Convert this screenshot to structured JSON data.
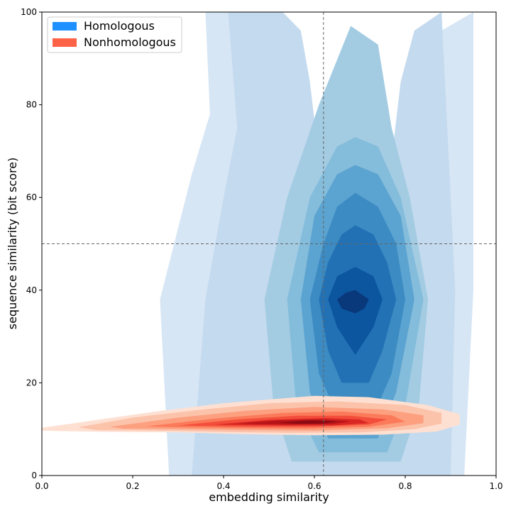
{
  "chart_data": {
    "type": "contour",
    "title": "",
    "xlabel": "embedding similarity",
    "ylabel": "sequence similarity (bit score)",
    "xlim": [
      0.0,
      1.0
    ],
    "ylim": [
      0,
      100
    ],
    "x_ticks": [
      {
        "value": 0.0,
        "label": "0.0"
      },
      {
        "value": 0.2,
        "label": "0.2"
      },
      {
        "value": 0.4,
        "label": "0.4"
      },
      {
        "value": 0.6,
        "label": "0.6"
      },
      {
        "value": 0.8,
        "label": "0.8"
      },
      {
        "value": 1.0,
        "label": "1.0"
      }
    ],
    "y_ticks": [
      {
        "value": 0,
        "label": "0"
      },
      {
        "value": 20,
        "label": "20"
      },
      {
        "value": 40,
        "label": "40"
      },
      {
        "value": 60,
        "label": "60"
      },
      {
        "value": 80,
        "label": "80"
      },
      {
        "value": 100,
        "label": "100"
      }
    ],
    "reference_lines": [
      {
        "orientation": "vertical",
        "value": 0.62
      },
      {
        "orientation": "horizontal",
        "value": 50
      }
    ],
    "grid": false,
    "legend": {
      "position": "top-left",
      "entries": [
        {
          "label": "Homologous",
          "color": "#1e90ff"
        },
        {
          "label": "Nonhomologous",
          "color": "#ff6347"
        }
      ]
    },
    "series": [
      {
        "name": "Homologous",
        "colormap": [
          "#d7e6f5",
          "#c4daee",
          "#a3cce3",
          "#84bcdb",
          "#5ba3d0",
          "#3c8bc3",
          "#2271b5",
          "#0c56a0",
          "#09387b"
        ],
        "center": [
          0.69,
          38
        ],
        "levels": [
          [
            [
              0.36,
              100
            ],
            [
              0.44,
              100
            ],
            [
              0.5,
              96
            ],
            [
              0.54,
              85
            ],
            [
              0.57,
              60
            ],
            [
              0.6,
              38
            ],
            [
              0.64,
              22
            ],
            [
              0.67,
              15
            ],
            [
              0.69,
              11
            ],
            [
              0.71,
              15
            ],
            [
              0.74,
              22
            ],
            [
              0.78,
              38
            ],
            [
              0.81,
              60
            ],
            [
              0.84,
              85
            ],
            [
              0.88,
              96
            ],
            [
              0.95,
              100
            ],
            [
              0.95,
              40
            ],
            [
              0.94,
              20
            ],
            [
              0.93,
              0
            ],
            [
              0.28,
              0
            ],
            [
              0.26,
              38
            ],
            [
              0.33,
              65
            ],
            [
              0.37,
              78
            ],
            [
              0.36,
              100
            ]
          ],
          [
            [
              0.41,
              100
            ],
            [
              0.53,
              100
            ],
            [
              0.57,
              96
            ],
            [
              0.59,
              85
            ],
            [
              0.62,
              60
            ],
            [
              0.64,
              40
            ],
            [
              0.66,
              24
            ],
            [
              0.69,
              15
            ],
            [
              0.71,
              24
            ],
            [
              0.73,
              40
            ],
            [
              0.76,
              60
            ],
            [
              0.79,
              85
            ],
            [
              0.82,
              96
            ],
            [
              0.88,
              100
            ],
            [
              0.91,
              40
            ],
            [
              0.9,
              0
            ],
            [
              0.33,
              0
            ],
            [
              0.36,
              38
            ],
            [
              0.4,
              60
            ],
            [
              0.43,
              75
            ],
            [
              0.41,
              100
            ]
          ],
          [
            [
              0.68,
              97
            ],
            [
              0.74,
              93
            ],
            [
              0.77,
              75
            ],
            [
              0.81,
              60
            ],
            [
              0.85,
              38
            ],
            [
              0.83,
              15
            ],
            [
              0.79,
              3
            ],
            [
              0.55,
              3
            ],
            [
              0.51,
              15
            ],
            [
              0.49,
              38
            ],
            [
              0.54,
              60
            ],
            [
              0.61,
              80
            ],
            [
              0.68,
              97
            ]
          ],
          [
            [
              0.69,
              73
            ],
            [
              0.74,
              71
            ],
            [
              0.79,
              60
            ],
            [
              0.84,
              38
            ],
            [
              0.8,
              15
            ],
            [
              0.76,
              5
            ],
            [
              0.61,
              5
            ],
            [
              0.56,
              15
            ],
            [
              0.54,
              38
            ],
            [
              0.59,
              60
            ],
            [
              0.65,
              71
            ],
            [
              0.69,
              73
            ]
          ],
          [
            [
              0.69,
              67
            ],
            [
              0.74,
              65
            ],
            [
              0.79,
              56
            ],
            [
              0.82,
              38
            ],
            [
              0.78,
              18
            ],
            [
              0.74,
              8
            ],
            [
              0.63,
              8
            ],
            [
              0.59,
              18
            ],
            [
              0.57,
              38
            ],
            [
              0.6,
              56
            ],
            [
              0.65,
              65
            ],
            [
              0.69,
              67
            ]
          ],
          [
            [
              0.69,
              61
            ],
            [
              0.74,
              58
            ],
            [
              0.78,
              50
            ],
            [
              0.8,
              38
            ],
            [
              0.77,
              22
            ],
            [
              0.73,
              13
            ],
            [
              0.65,
              13
            ],
            [
              0.61,
              22
            ],
            [
              0.59,
              38
            ],
            [
              0.62,
              50
            ],
            [
              0.65,
              58
            ],
            [
              0.69,
              61
            ]
          ],
          [
            [
              0.69,
              54
            ],
            [
              0.73,
              52
            ],
            [
              0.76,
              46
            ],
            [
              0.78,
              38
            ],
            [
              0.75,
              27
            ],
            [
              0.72,
              20
            ],
            [
              0.66,
              20
            ],
            [
              0.63,
              27
            ],
            [
              0.61,
              38
            ],
            [
              0.63,
              46
            ],
            [
              0.66,
              52
            ],
            [
              0.69,
              54
            ]
          ],
          [
            [
              0.69,
              45
            ],
            [
              0.73,
              43
            ],
            [
              0.75,
              38
            ],
            [
              0.73,
              32
            ],
            [
              0.69,
              26
            ],
            [
              0.65,
              32
            ],
            [
              0.63,
              38
            ],
            [
              0.65,
              43
            ],
            [
              0.69,
              45
            ]
          ],
          [
            [
              0.69,
              40
            ],
            [
              0.72,
              38
            ],
            [
              0.71,
              36
            ],
            [
              0.69,
              35
            ],
            [
              0.66,
              36
            ],
            [
              0.65,
              38
            ],
            [
              0.67,
              39.5
            ],
            [
              0.69,
              40
            ]
          ]
        ]
      },
      {
        "name": "Nonhomologous",
        "colormap": [
          "#fee0d2",
          "#fcc3ab",
          "#fca080",
          "#fb7a5a",
          "#f34e3b",
          "#d92724",
          "#b71418",
          "#8b0a13"
        ],
        "center": [
          0.6,
          11.5
        ],
        "levels": [
          [
            [
              0.0,
              10.3
            ],
            [
              0.1,
              11.7
            ],
            [
              0.25,
              13.8
            ],
            [
              0.4,
              15.6
            ],
            [
              0.6,
              17.2
            ],
            [
              0.72,
              16.9
            ],
            [
              0.85,
              15.2
            ],
            [
              0.92,
              13.2
            ],
            [
              0.92,
              11.0
            ],
            [
              0.87,
              9.5
            ],
            [
              0.75,
              8.8
            ],
            [
              0.6,
              8.7
            ],
            [
              0.45,
              8.9
            ],
            [
              0.3,
              9.3
            ],
            [
              0.15,
              9.4
            ],
            [
              0.03,
              9.6
            ],
            [
              0.0,
              9.7
            ],
            [
              0.0,
              10.3
            ]
          ],
          [
            [
              0.08,
              10.4
            ],
            [
              0.2,
              12.5
            ],
            [
              0.35,
              14.2
            ],
            [
              0.5,
              15.6
            ],
            [
              0.65,
              16.0
            ],
            [
              0.8,
              15.2
            ],
            [
              0.88,
              13.5
            ],
            [
              0.88,
              11.2
            ],
            [
              0.82,
              10.0
            ],
            [
              0.7,
              9.3
            ],
            [
              0.55,
              9.2
            ],
            [
              0.4,
              9.4
            ],
            [
              0.25,
              9.7
            ],
            [
              0.12,
              9.8
            ],
            [
              0.08,
              10.4
            ]
          ],
          [
            [
              0.15,
              10.5
            ],
            [
              0.3,
              12.5
            ],
            [
              0.45,
              14.0
            ],
            [
              0.6,
              14.8
            ],
            [
              0.75,
              14.3
            ],
            [
              0.84,
              13.0
            ],
            [
              0.84,
              11.3
            ],
            [
              0.76,
              10.2
            ],
            [
              0.6,
              9.7
            ],
            [
              0.45,
              9.8
            ],
            [
              0.3,
              10.0
            ],
            [
              0.18,
              10.1
            ],
            [
              0.15,
              10.5
            ]
          ],
          [
            [
              0.23,
              10.6
            ],
            [
              0.38,
              12.3
            ],
            [
              0.53,
              13.5
            ],
            [
              0.66,
              13.8
            ],
            [
              0.77,
              13.0
            ],
            [
              0.8,
              11.6
            ],
            [
              0.72,
              10.5
            ],
            [
              0.58,
              10.1
            ],
            [
              0.45,
              10.2
            ],
            [
              0.3,
              10.4
            ],
            [
              0.23,
              10.6
            ]
          ],
          [
            [
              0.3,
              10.8
            ],
            [
              0.43,
              12.1
            ],
            [
              0.56,
              12.9
            ],
            [
              0.68,
              12.9
            ],
            [
              0.76,
              12.1
            ],
            [
              0.72,
              11.0
            ],
            [
              0.6,
              10.5
            ],
            [
              0.47,
              10.5
            ],
            [
              0.35,
              10.7
            ],
            [
              0.3,
              10.8
            ]
          ],
          [
            [
              0.38,
              11.0
            ],
            [
              0.5,
              12.0
            ],
            [
              0.62,
              12.4
            ],
            [
              0.7,
              12.1
            ],
            [
              0.72,
              11.3
            ],
            [
              0.64,
              10.8
            ],
            [
              0.52,
              10.8
            ],
            [
              0.42,
              10.9
            ],
            [
              0.38,
              11.0
            ]
          ],
          [
            [
              0.43,
              11.2
            ],
            [
              0.52,
              11.9
            ],
            [
              0.62,
              12.1
            ],
            [
              0.68,
              11.7
            ],
            [
              0.64,
              11.1
            ],
            [
              0.55,
              11.0
            ],
            [
              0.47,
              11.1
            ],
            [
              0.43,
              11.2
            ]
          ],
          [
            [
              0.52,
              11.4
            ],
            [
              0.59,
              11.9
            ],
            [
              0.65,
              11.7
            ],
            [
              0.62,
              11.2
            ],
            [
              0.56,
              11.2
            ],
            [
              0.52,
              11.4
            ]
          ]
        ]
      }
    ]
  }
}
